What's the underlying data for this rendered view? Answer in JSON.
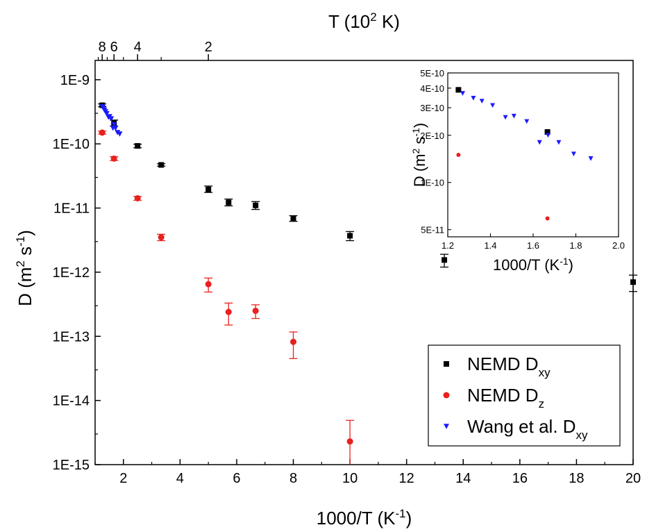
{
  "chart_data": [
    {
      "type": "scatter",
      "xlabel": "1000/T (K",
      "xlabel_sup": "-1",
      "ylabel": "D (m",
      "ylabel_sup1": "2",
      "ylabel_mid": " s",
      "ylabel_sup2": "-1",
      "top_xlabel": "T (10",
      "top_xlabel_sup": "2",
      "top_xlabel_end": " K)",
      "yscale": "log",
      "xlim": [
        1,
        20
      ],
      "ylim": [
        1e-15,
        2e-09
      ],
      "x_ticks": [
        2,
        4,
        6,
        8,
        10,
        12,
        14,
        16,
        18,
        20
      ],
      "x_tick_labels": [
        "2",
        "4",
        "6",
        "8",
        "10",
        "12",
        "14",
        "16",
        "18",
        "20"
      ],
      "y_ticks": [
        1e-15,
        1e-14,
        1e-13,
        1e-12,
        1e-11,
        1e-10,
        1e-09
      ],
      "y_tick_labels": [
        "1E-15",
        "1E-14",
        "1E-13",
        "1E-12",
        "1E-11",
        "1E-10",
        "1E-9"
      ],
      "top_ticks_T_hundredsK": [
        8,
        6,
        4,
        2
      ],
      "top_tick_labels": [
        "8",
        "6",
        "4",
        "2"
      ],
      "legend_position": "bottom-right",
      "series": [
        {
          "name": "NEMD D",
          "name_sub": "xy",
          "marker": "square",
          "color": "#000000",
          "x": [
            1.25,
            1.667,
            2.5,
            3.333,
            5.0,
            5.714,
            6.667,
            8.0,
            10.0,
            13.333,
            20.0
          ],
          "y": [
            4e-10,
            2.1e-10,
            9.3e-11,
            4.7e-11,
            1.95e-11,
            1.22e-11,
            1.1e-11,
            6.9e-12,
            3.7e-12,
            1.55e-12,
            7e-13
          ],
          "err_low": [
            3.8e-10,
            1.9e-10,
            8.7e-11,
            4.5e-11,
            1.75e-11,
            1.08e-11,
            9.5e-12,
            6.2e-12,
            3.1e-12,
            1.2e-12,
            5e-13
          ],
          "err_high": [
            4.2e-10,
            2.35e-10,
            9.9e-11,
            4.9e-11,
            2.2e-11,
            1.38e-11,
            1.26e-11,
            7.6e-12,
            4.3e-12,
            1.9e-12,
            9e-13
          ]
        },
        {
          "name": "NEMD D",
          "name_sub": "z",
          "marker": "circle",
          "color": "#e8211f",
          "x": [
            1.25,
            1.667,
            2.5,
            3.333,
            5.0,
            5.714,
            6.667,
            8.0,
            10.0
          ],
          "y": [
            1.5e-10,
            5.9e-11,
            1.42e-11,
            3.5e-12,
            6.5e-13,
            2.4e-13,
            2.5e-13,
            8.2e-14,
            2.3e-15
          ],
          "err_low": [
            1.42e-10,
            5.5e-11,
            1.32e-11,
            3.1e-12,
            4.9e-13,
            1.5e-13,
            1.9e-13,
            4.5e-14,
            1e-15
          ],
          "err_high": [
            1.58e-10,
            6.3e-11,
            1.52e-11,
            3.9e-12,
            8.1e-13,
            3.3e-13,
            3.1e-13,
            1.17e-13,
            4.9e-15
          ]
        },
        {
          "name": "Wang et al. D",
          "name_sub": "xy",
          "marker": "triangle-down",
          "color": "#1a1aff",
          "x": [
            1.25,
            1.29,
            1.33,
            1.37,
            1.41,
            1.47,
            1.51,
            1.57,
            1.63,
            1.67,
            1.72,
            1.79,
            1.87
          ],
          "y": [
            3.8e-10,
            3.6e-10,
            3.35e-10,
            3.15e-10,
            2.95e-10,
            2.6e-10,
            2.65e-10,
            2.45e-10,
            1.75e-10,
            2e-10,
            1.75e-10,
            1.5e-10,
            1.42e-10
          ]
        }
      ]
    },
    {
      "type": "scatter",
      "xlabel": "1000/T (K",
      "xlabel_sup": "-1",
      "ylabel": "D (m",
      "ylabel_sup1": "2",
      "ylabel_mid": " s",
      "ylabel_sup2": "-1",
      "yscale": "log",
      "xlim": [
        1.2,
        2.0
      ],
      "ylim": [
        4.5e-11,
        5e-10
      ],
      "x_ticks": [
        1.2,
        1.4,
        1.6,
        1.8,
        2.0
      ],
      "x_tick_labels": [
        "1.2",
        "1.4",
        "1.6",
        "1.8",
        "2.0"
      ],
      "y_ticks": [
        5e-11,
        1e-10,
        2e-10,
        3e-10,
        4e-10,
        5e-10
      ],
      "y_tick_labels": [
        "5E-11",
        "1E-10",
        "2E-10",
        "3E-10",
        "4E-10",
        "5E-10"
      ],
      "series": [
        {
          "marker": "square",
          "color": "#000000",
          "x": [
            1.25,
            1.667
          ],
          "y": [
            3.9e-10,
            2.1e-10
          ]
        },
        {
          "marker": "circle",
          "color": "#e8211f",
          "x": [
            1.25,
            1.667
          ],
          "y": [
            1.5e-10,
            5.9e-11
          ]
        },
        {
          "marker": "triangle-down",
          "color": "#1a1aff",
          "x": [
            1.27,
            1.32,
            1.36,
            1.41,
            1.47,
            1.51,
            1.57,
            1.63,
            1.67,
            1.72,
            1.79,
            1.87
          ],
          "y": [
            3.7e-10,
            3.45e-10,
            3.3e-10,
            3.1e-10,
            2.6e-10,
            2.65e-10,
            2.45e-10,
            1.8e-10,
            2e-10,
            1.8e-10,
            1.52e-10,
            1.42e-10
          ]
        }
      ]
    }
  ]
}
